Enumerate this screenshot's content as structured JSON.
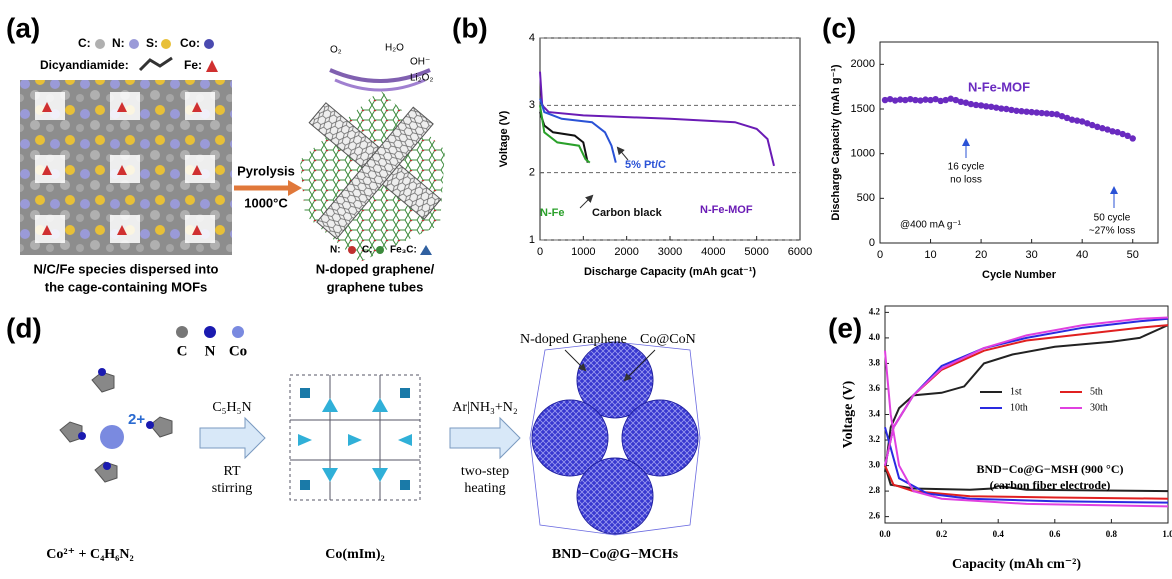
{
  "panels": {
    "a": {
      "label": "(a)",
      "legend": [
        "C:",
        "N:",
        "S:",
        "Co:",
        "Dicyandiamide:",
        "Fe:"
      ],
      "arrow": "Pyrolysis",
      "temperature": "1000°C",
      "species": [
        "O₂",
        "H₂O",
        "OH⁻",
        "Li₂O₂"
      ],
      "product_legend": [
        "N:",
        "C:",
        "Fe₃C:"
      ],
      "caption_left": [
        "N/C/Fe species dispersed into",
        "the cage-containing MOFs"
      ],
      "caption_right": [
        "N-doped graphene/",
        "graphene tubes"
      ]
    },
    "d": {
      "label": "(d)",
      "elements": [
        "C",
        "N",
        "Co"
      ],
      "charge": "2+",
      "reagent": "C₅H₅N",
      "condition": [
        "RT",
        "stirring"
      ],
      "gas": "Ar|NH₃+N₂",
      "treatment": [
        "two-step",
        "heating"
      ],
      "shell": "N-doped Graphene",
      "core": "Co@CoN",
      "captions": [
        "Co²⁺ + C₄H₆N₂",
        "Co(mIm)₂",
        "BND−Co@G−MCHs"
      ]
    }
  },
  "chart_data": [
    {
      "type": "line",
      "panel": "(b)",
      "xlabel": "Discharge Capacity (mAh gcat⁻¹)",
      "ylabel": "Voltage (V)",
      "xlim": [
        0,
        6000
      ],
      "xticks": [
        0,
        1000,
        2000,
        3000,
        4000,
        5000,
        6000
      ],
      "ylim": [
        1,
        4
      ],
      "yticks": [
        1,
        2,
        3,
        4
      ],
      "grid": true,
      "series": [
        {
          "name": "N-Fe-MOF",
          "color": "#6a1bb5",
          "x": [
            0,
            50,
            200,
            1000,
            3000,
            4500,
            5000,
            5250,
            5400
          ],
          "values": [
            3.5,
            3.0,
            2.9,
            2.85,
            2.8,
            2.75,
            2.65,
            2.5,
            2.1
          ]
        },
        {
          "name": "5% Pt/C",
          "color": "#2a52d6",
          "x": [
            0,
            100,
            500,
            1200,
            1500,
            1650,
            1750
          ],
          "values": [
            3.1,
            2.9,
            2.8,
            2.75,
            2.6,
            2.4,
            2.15
          ]
        },
        {
          "name": "Carbon black",
          "color": "#111111",
          "x": [
            0,
            100,
            300,
            800,
            1000,
            1100
          ],
          "values": [
            2.9,
            2.7,
            2.6,
            2.55,
            2.45,
            2.15
          ]
        },
        {
          "name": "N-Fe",
          "color": "#2aa02a",
          "x": [
            0,
            100,
            400,
            900,
            1050,
            1150
          ],
          "values": [
            3.0,
            2.6,
            2.45,
            2.4,
            2.2,
            2.15
          ]
        }
      ]
    },
    {
      "type": "line",
      "panel": "(c)",
      "xlabel": "Cycle Number",
      "ylabel": "Discharge Capacity (mAh g⁻¹)",
      "markers": true,
      "xlim": [
        0,
        55
      ],
      "xticks": [
        0,
        10,
        20,
        30,
        40,
        50
      ],
      "ylim": [
        0,
        2250
      ],
      "yticks": [
        0,
        500,
        1000,
        1500,
        2000
      ],
      "annotations": [
        "16 cycle",
        "no loss",
        "50 cycle",
        "~27% loss",
        "@400 mA g⁻¹"
      ],
      "series": [
        {
          "name": "N-Fe-MOF",
          "color": "#6a2bc0",
          "x": [
            1,
            2,
            3,
            4,
            5,
            6,
            7,
            8,
            9,
            10,
            11,
            12,
            13,
            14,
            15,
            16,
            17,
            18,
            19,
            20,
            21,
            22,
            23,
            24,
            25,
            26,
            27,
            28,
            29,
            30,
            31,
            32,
            33,
            34,
            35,
            36,
            37,
            38,
            39,
            40,
            41,
            42,
            43,
            44,
            45,
            46,
            47,
            48,
            49,
            50
          ],
          "values": [
            1600,
            1610,
            1595,
            1605,
            1600,
            1610,
            1600,
            1595,
            1605,
            1600,
            1610,
            1590,
            1600,
            1615,
            1600,
            1580,
            1570,
            1555,
            1545,
            1540,
            1530,
            1525,
            1515,
            1505,
            1500,
            1490,
            1480,
            1475,
            1470,
            1465,
            1460,
            1455,
            1450,
            1445,
            1440,
            1420,
            1400,
            1380,
            1370,
            1360,
            1340,
            1320,
            1300,
            1285,
            1270,
            1250,
            1240,
            1220,
            1200,
            1170
          ]
        }
      ]
    },
    {
      "type": "line",
      "panel": "(e)",
      "xlabel": "Capacity (mAh cm⁻²)",
      "ylabel": "Voltage (V)",
      "legend": "center",
      "xlim": [
        0,
        1.0
      ],
      "xticks": [
        {
          "value": 0,
          "label": "0.0"
        },
        0.2,
        0.4,
        0.6,
        0.8,
        {
          "value": 1,
          "label": "1.0"
        }
      ],
      "ylim": [
        2.55,
        4.25
      ],
      "yticks": [
        2.6,
        2.8,
        {
          "value": 3,
          "label": "3.0"
        },
        3.2,
        3.4,
        3.6,
        3.8,
        {
          "value": 4,
          "label": "4.0"
        },
        4.2
      ],
      "annotations": [
        "BND−Co@G−MSH (900 °C)",
        "(carbon fiber electrode)"
      ],
      "series": [
        {
          "name": "1st",
          "color": "#222222",
          "x": [
            0,
            0.02,
            0.1,
            0.3,
            0.38,
            0.4,
            0.5,
            1.0,
            null,
            0,
            0.02,
            0.05,
            0.1,
            0.2,
            0.28,
            0.35,
            0.45,
            0.6,
            0.8,
            0.9,
            1.0
          ],
          "values": [
            3.0,
            2.85,
            2.82,
            2.81,
            2.82,
            2.84,
            2.81,
            2.8,
            null,
            2.95,
            3.3,
            3.45,
            3.55,
            3.57,
            3.62,
            3.8,
            3.87,
            3.93,
            3.97,
            4.0,
            4.1
          ]
        },
        {
          "name": "5th",
          "color": "#e02020",
          "x": [
            0,
            0.03,
            0.1,
            0.3,
            0.6,
            1.0,
            null,
            0,
            0.03,
            0.1,
            0.2,
            0.35,
            0.5,
            0.7,
            0.9,
            1.0
          ],
          "values": [
            3.0,
            2.85,
            2.8,
            2.76,
            2.75,
            2.74,
            null,
            3.0,
            3.3,
            3.55,
            3.75,
            3.9,
            3.98,
            4.03,
            4.08,
            4.1
          ]
        },
        {
          "name": "10th",
          "color": "#2a2ae0",
          "x": [
            0,
            0.05,
            0.15,
            0.3,
            0.6,
            1.0,
            null,
            0,
            0.03,
            0.1,
            0.2,
            0.35,
            0.5,
            0.7,
            0.9,
            1.0
          ],
          "values": [
            3.3,
            2.9,
            2.78,
            2.74,
            2.72,
            2.71,
            null,
            3.0,
            3.3,
            3.55,
            3.78,
            3.92,
            4.0,
            4.08,
            4.13,
            4.15
          ]
        },
        {
          "name": "30th",
          "color": "#e040e0",
          "x": [
            0,
            0.02,
            0.05,
            0.1,
            0.2,
            0.5,
            1.0,
            null,
            0,
            0.03,
            0.1,
            0.2,
            0.35,
            0.5,
            0.7,
            0.9,
            1.0
          ],
          "values": [
            3.9,
            3.4,
            3.0,
            2.8,
            2.74,
            2.7,
            2.68,
            null,
            3.0,
            3.3,
            3.55,
            3.76,
            3.92,
            4.02,
            4.1,
            4.15,
            4.16
          ]
        }
      ]
    }
  ]
}
